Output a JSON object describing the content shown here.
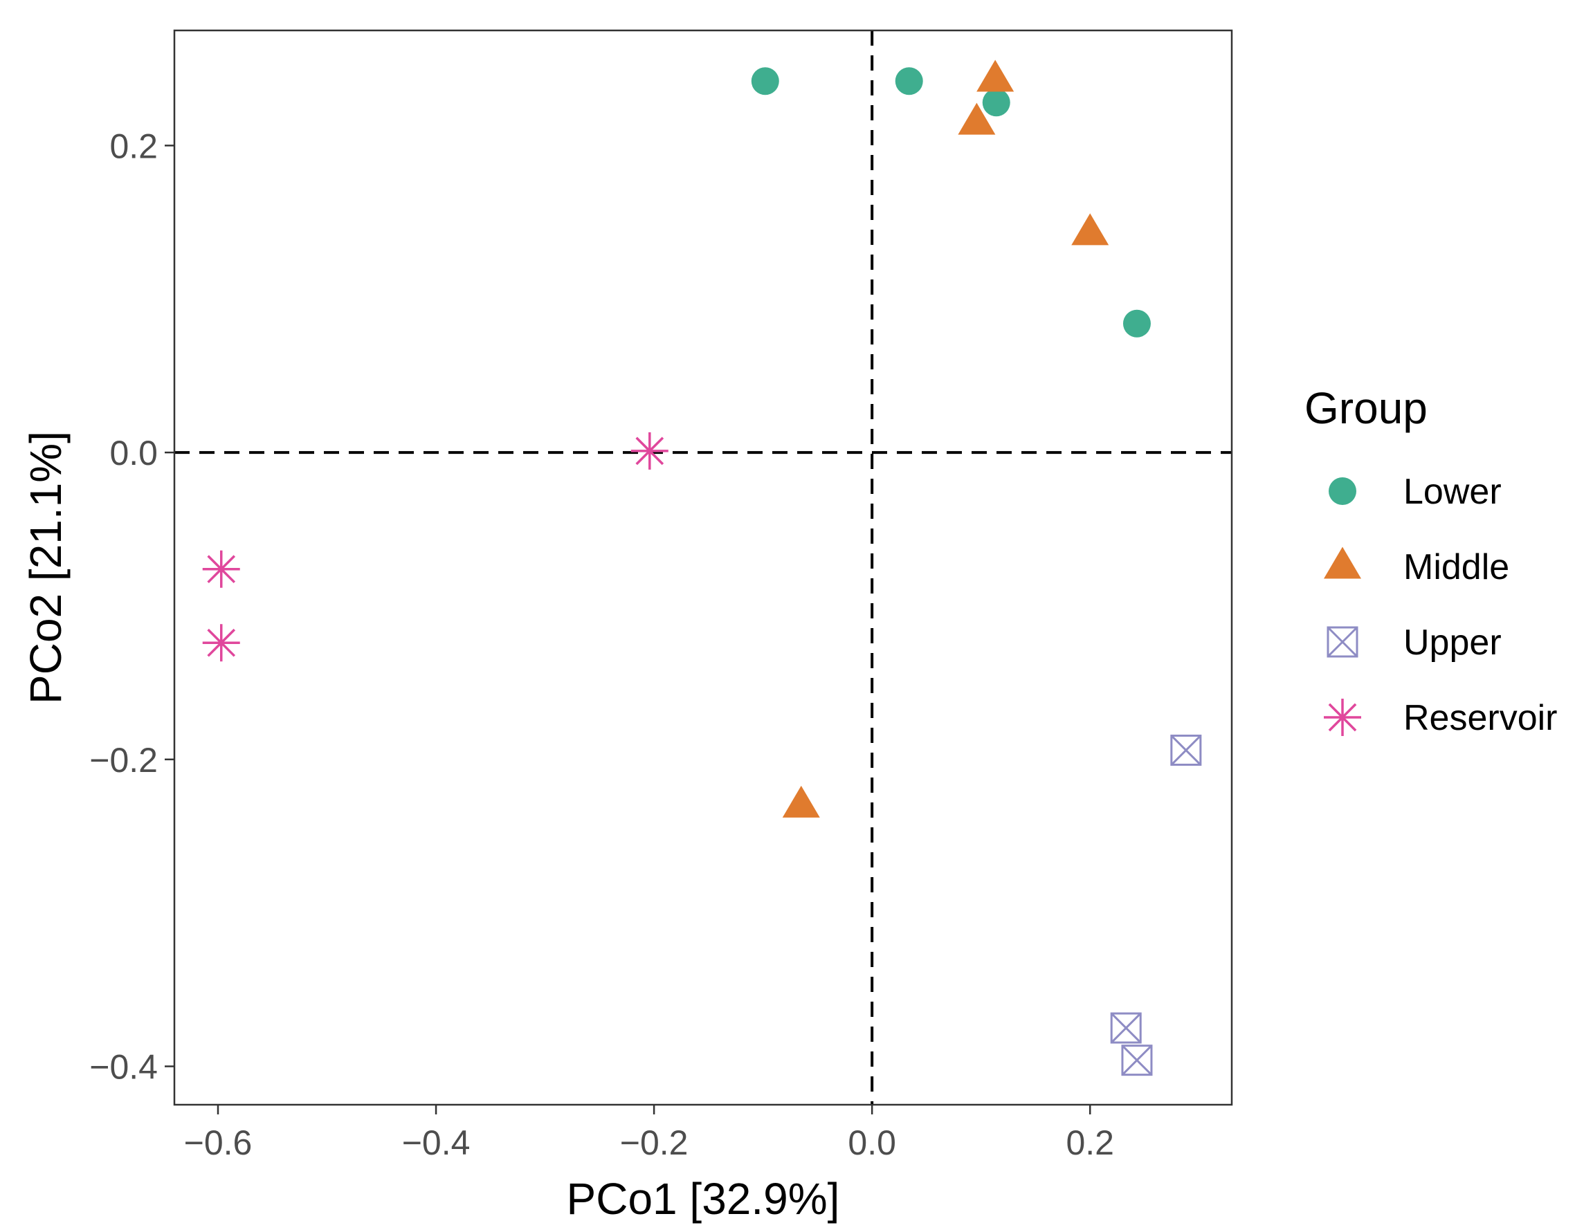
{
  "chart_data": {
    "type": "scatter",
    "title": "",
    "xlabel": "PCo1 [32.9%]",
    "ylabel": "PCo2 [21.1%]",
    "xlim": [
      -0.64,
      0.33
    ],
    "ylim": [
      -0.425,
      0.275
    ],
    "xticks": [
      -0.6,
      -0.4,
      -0.2,
      0.0,
      0.2
    ],
    "xtick_labels": [
      "−0.6",
      "−0.4",
      "−0.2",
      "0.0",
      "0.2"
    ],
    "yticks": [
      -0.4,
      -0.2,
      0.0,
      0.2
    ],
    "ytick_labels": [
      "−0.4",
      "−0.2",
      "0.0",
      "0.2"
    ],
    "reference_lines": {
      "x": 0,
      "y": 0,
      "style": "dashed"
    },
    "grid": false,
    "legend": {
      "title": "Group",
      "position": "right"
    },
    "series": [
      {
        "name": "Lower",
        "shape": "circle",
        "color": "#3fae8f",
        "points": [
          {
            "x": -0.098,
            "y": 0.242
          },
          {
            "x": 0.034,
            "y": 0.242
          },
          {
            "x": 0.114,
            "y": 0.228
          },
          {
            "x": 0.243,
            "y": 0.084
          }
        ]
      },
      {
        "name": "Middle",
        "shape": "triangle",
        "color": "#e07b2e",
        "points": [
          {
            "x": 0.113,
            "y": 0.243
          },
          {
            "x": 0.096,
            "y": 0.215
          },
          {
            "x": 0.2,
            "y": 0.143
          },
          {
            "x": -0.065,
            "y": -0.23
          }
        ]
      },
      {
        "name": "Upper",
        "shape": "boxed-x",
        "color": "#8e8cc4",
        "points": [
          {
            "x": 0.288,
            "y": -0.194
          },
          {
            "x": 0.233,
            "y": -0.375
          },
          {
            "x": 0.243,
            "y": -0.396
          }
        ]
      },
      {
        "name": "Reservoir",
        "shape": "asterisk",
        "color": "#e0479c",
        "points": [
          {
            "x": -0.204,
            "y": 0.001
          },
          {
            "x": -0.597,
            "y": -0.076
          },
          {
            "x": -0.597,
            "y": -0.124
          }
        ]
      }
    ]
  }
}
